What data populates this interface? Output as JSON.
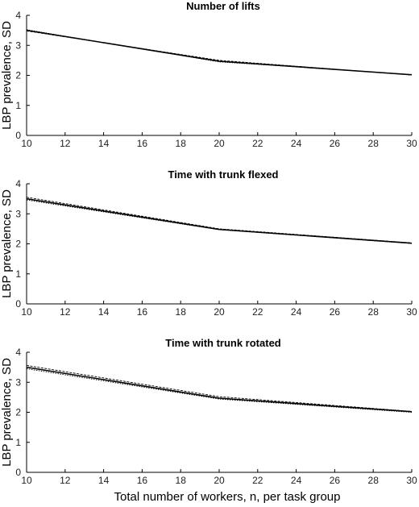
{
  "chart_data": [
    {
      "type": "line",
      "title": "Number of lifts",
      "ylabel": "LBP prevalence, SD",
      "xlabel": "",
      "xlim": [
        10,
        30
      ],
      "ylim": [
        0,
        4
      ],
      "xticks": [
        10,
        12,
        14,
        16,
        18,
        20,
        22,
        24,
        26,
        28,
        30
      ],
      "yticks": [
        0,
        1,
        2,
        3,
        4
      ],
      "grid": false,
      "series": [
        {
          "x": [
            10,
            20,
            30
          ],
          "values": [
            3.5,
            2.47,
            2.02
          ]
        },
        {
          "x": [
            10,
            20,
            30
          ],
          "values": [
            3.48,
            2.5,
            2.01
          ]
        },
        {
          "x": [
            10,
            20,
            30
          ],
          "values": [
            3.52,
            2.45,
            2.03
          ]
        }
      ]
    },
    {
      "type": "line",
      "title": "Time with trunk flexed",
      "ylabel": "LBP prevalence, SD",
      "xlabel": "",
      "xlim": [
        10,
        30
      ],
      "ylim": [
        0,
        4
      ],
      "xticks": [
        10,
        12,
        14,
        16,
        18,
        20,
        22,
        24,
        26,
        28,
        30
      ],
      "yticks": [
        0,
        1,
        2,
        3,
        4
      ],
      "grid": false,
      "series": [
        {
          "x": [
            10,
            20,
            30
          ],
          "values": [
            3.5,
            2.48,
            2.02
          ]
        },
        {
          "x": [
            10,
            20,
            30
          ],
          "values": [
            3.55,
            2.5,
            2.03
          ]
        },
        {
          "x": [
            10,
            20,
            30
          ],
          "values": [
            3.46,
            2.47,
            2.01
          ]
        }
      ]
    },
    {
      "type": "line",
      "title": "Time with trunk rotated",
      "ylabel": "LBP prevalence, SD",
      "xlabel": "Total number of workers, n, per task group",
      "xlim": [
        10,
        30
      ],
      "ylim": [
        0,
        4
      ],
      "xticks": [
        10,
        12,
        14,
        16,
        18,
        20,
        22,
        24,
        26,
        28,
        30
      ],
      "yticks": [
        0,
        1,
        2,
        3,
        4
      ],
      "grid": false,
      "series": [
        {
          "x": [
            10,
            20,
            30
          ],
          "values": [
            3.5,
            2.47,
            2.02
          ]
        },
        {
          "x": [
            10,
            20,
            30
          ],
          "values": [
            3.56,
            2.52,
            2.03
          ]
        },
        {
          "x": [
            10,
            20,
            30
          ],
          "values": [
            3.45,
            2.44,
            2.0
          ]
        }
      ]
    }
  ]
}
